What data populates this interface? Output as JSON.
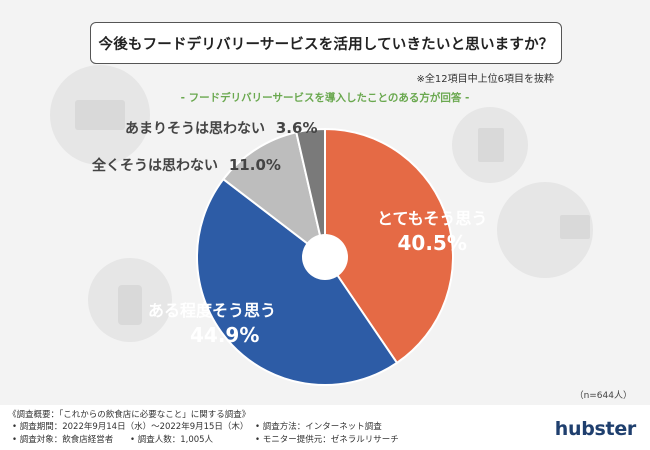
{
  "question": "今後もフードデリバリーサービスを活用していきたいと思いますか？",
  "note": "※全12項目中上位6項目を抜粋",
  "subtitle": "- フードデリバリーサービスを導入したことのある方が回答 -",
  "n_label": "（n=644人）",
  "chart_data": {
    "type": "pie",
    "slices": [
      {
        "label": "とてもそう思う",
        "value": 40.5,
        "value_label": "40.5%",
        "color": "#e56a45"
      },
      {
        "label": "ある程度そう思う",
        "value": 44.9,
        "value_label": "44.9%",
        "color": "#2d5ca6"
      },
      {
        "label": "全くそうは思わない",
        "value": 11.0,
        "value_label": "11.0%",
        "color": "#bdbdbd"
      },
      {
        "label": "あまりそうは思わない",
        "value": 3.6,
        "value_label": "3.6%",
        "color": "#7a7a7a"
      }
    ],
    "donut_hole": true
  },
  "footer": {
    "survey_title": "《調査概要：「これからの飲食店に必要なこと」に関する調査》",
    "period": "• 調査期間：2022年9月14日（水）〜2022年9月15日（木）",
    "method": "• 調査方法：インターネット調査",
    "target": "• 調査対象：飲食店経営者",
    "count": "• 調査人数：1,005人",
    "provider": "• モニター提供元：ゼネラルリサーチ"
  },
  "logo_text": "hubster"
}
